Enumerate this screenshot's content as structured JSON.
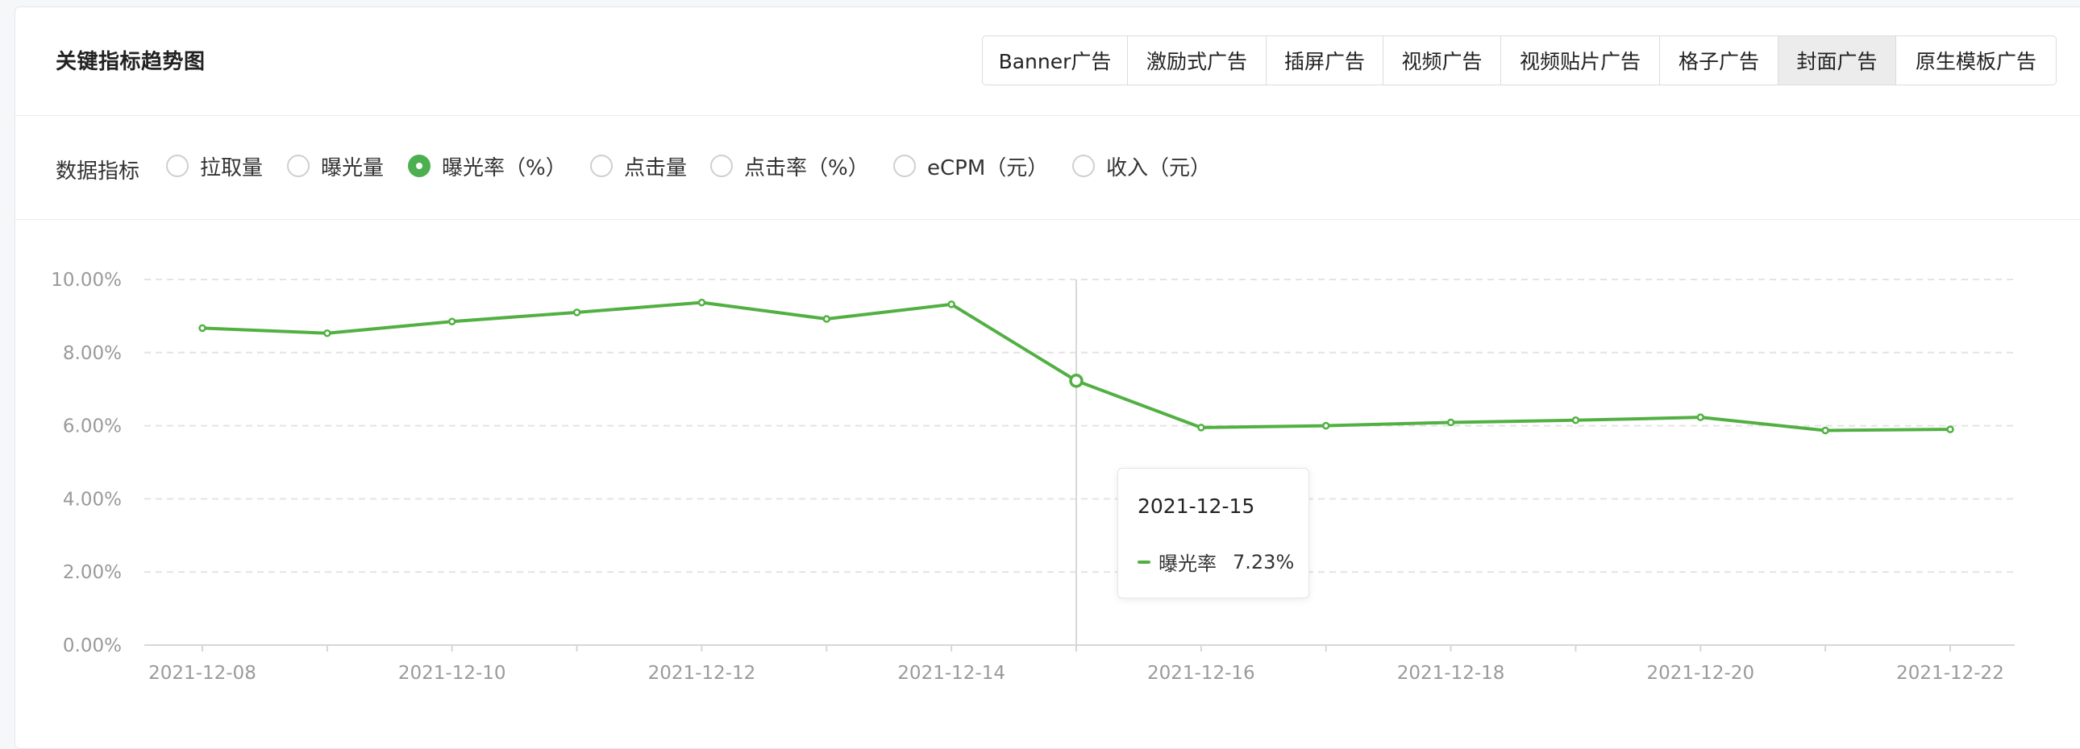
{
  "header": {
    "title": "关键指标趋势图",
    "tabs": [
      {
        "label": "Banner广告",
        "active": false
      },
      {
        "label": "激励式广告",
        "active": false
      },
      {
        "label": "插屏广告",
        "active": false
      },
      {
        "label": "视频广告",
        "active": false
      },
      {
        "label": "视频贴片广告",
        "active": false
      },
      {
        "label": "格子广告",
        "active": false
      },
      {
        "label": "封面广告",
        "active": true
      },
      {
        "label": "原生模板广告",
        "active": false
      }
    ]
  },
  "metrics": {
    "label": "数据指标",
    "options": [
      {
        "label": "拉取量",
        "checked": false
      },
      {
        "label": "曝光量",
        "checked": false
      },
      {
        "label": "曝光率（%）",
        "checked": true
      },
      {
        "label": "点击量",
        "checked": false
      },
      {
        "label": "点击率（%）",
        "checked": false
      },
      {
        "label": "eCPM（元）",
        "checked": false
      },
      {
        "label": "收入（元）",
        "checked": false
      }
    ]
  },
  "colors": {
    "series": "#52b043",
    "accent": "#4caf50",
    "axis_text": "#9a9a9a",
    "grid": "#e4e4e4"
  },
  "tooltip": {
    "date": "2021-12-15",
    "series_name": "曝光率",
    "value": "7.23%"
  },
  "chart_data": {
    "type": "line",
    "x": [
      "2021-12-08",
      "2021-12-09",
      "2021-12-10",
      "2021-12-11",
      "2021-12-12",
      "2021-12-13",
      "2021-12-14",
      "2021-12-15",
      "2021-12-16",
      "2021-12-17",
      "2021-12-18",
      "2021-12-19",
      "2021-12-20",
      "2021-12-21",
      "2021-12-22"
    ],
    "x_tick_labels": [
      "2021-12-08",
      "2021-12-10",
      "2021-12-12",
      "2021-12-14",
      "2021-12-16",
      "2021-12-18",
      "2021-12-20",
      "2021-12-22"
    ],
    "y_ticks": [
      0,
      2,
      4,
      6,
      8,
      10
    ],
    "y_tick_labels": [
      "0.00%",
      "2.00%",
      "4.00%",
      "6.00%",
      "8.00%",
      "10.00%"
    ],
    "ylim": [
      0,
      10
    ],
    "series": [
      {
        "values": [
          8.67,
          8.53,
          8.85,
          9.1,
          9.37,
          8.92,
          9.32,
          7.23,
          5.95,
          6.0,
          6.09,
          6.15,
          6.23,
          5.87,
          5.9
        ]
      }
    ],
    "highlighted_index": 7,
    "grid": true,
    "title": "",
    "xlabel": "",
    "ylabel": ""
  }
}
